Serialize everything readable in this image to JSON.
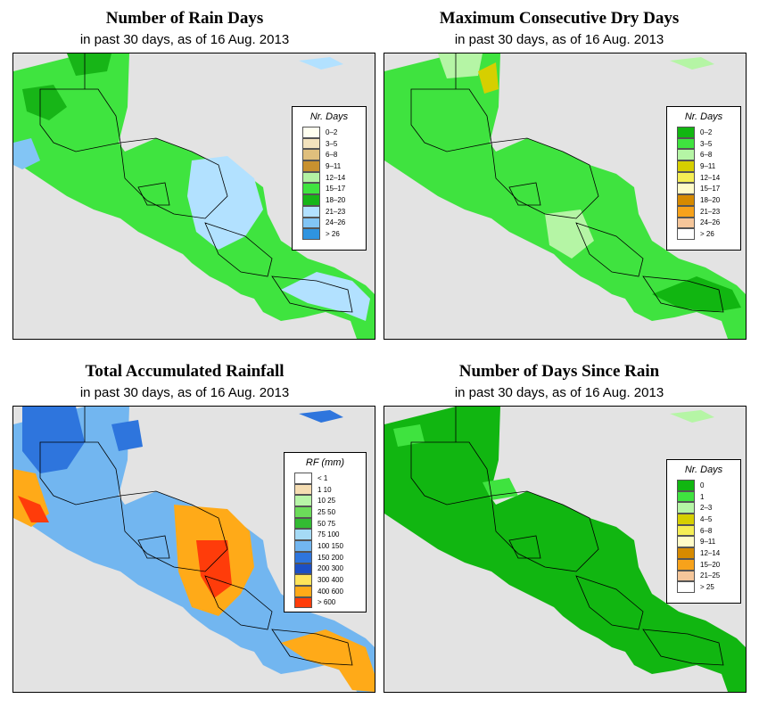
{
  "panels": [
    {
      "title": "Number of Rain Days",
      "subtitle": "in past 30 days, as of  16 Aug. 2013",
      "legend": {
        "title": "Nr. Days",
        "items": [
          {
            "label": "0–2",
            "color": "#fffff0"
          },
          {
            "label": "3–5",
            "color": "#f3e3bd"
          },
          {
            "label": "6–8",
            "color": "#dfbf7d"
          },
          {
            "label": "9–11",
            "color": "#c8912f"
          },
          {
            "label": "12–14",
            "color": "#b3f2a3"
          },
          {
            "label": "15–17",
            "color": "#3fe43f"
          },
          {
            "label": "18–20",
            "color": "#17b517"
          },
          {
            "label": "21–23",
            "color": "#b2e1ff"
          },
          {
            "label": "24–26",
            "color": "#82c5f5"
          },
          {
            "label": "> 26",
            "color": "#2f94e0"
          }
        ]
      }
    },
    {
      "title": "Maximum Consecutive Dry Days",
      "subtitle": "in past 30 days, as of  16 Aug. 2013",
      "legend": {
        "title": "Nr. Days",
        "items": [
          {
            "label": "0–2",
            "color": "#11b611"
          },
          {
            "label": "3–5",
            "color": "#3fe33f"
          },
          {
            "label": "6–8",
            "color": "#b5f5a5"
          },
          {
            "label": "9–11",
            "color": "#d6cf00"
          },
          {
            "label": "12–14",
            "color": "#f5ee55"
          },
          {
            "label": "15–17",
            "color": "#fffbc8"
          },
          {
            "label": "18–20",
            "color": "#d68a00"
          },
          {
            "label": "21–23",
            "color": "#f7a21b"
          },
          {
            "label": "24–26",
            "color": "#f5c69a"
          },
          {
            "label": "> 26",
            "color": "#ffffff"
          }
        ]
      }
    },
    {
      "title": "Total Accumulated Rainfall",
      "subtitle": "in past 30 days, as of  16 Aug. 2013",
      "legend": {
        "title": "RF (mm)",
        "items": [
          {
            "label": "< 1",
            "color": "#ffffff"
          },
          {
            "label": "1   10",
            "color": "#f5ddb2"
          },
          {
            "label": "10   25",
            "color": "#b8f5a8"
          },
          {
            "label": "25   50",
            "color": "#6cdc5a"
          },
          {
            "label": "50   75",
            "color": "#33bb33"
          },
          {
            "label": "75   100",
            "color": "#a5daf5"
          },
          {
            "label": "100   150",
            "color": "#72b6f0"
          },
          {
            "label": "150   200",
            "color": "#2e75dd"
          },
          {
            "label": "200   300",
            "color": "#1c4fc4"
          },
          {
            "label": "300   400",
            "color": "#ffe45a"
          },
          {
            "label": "400   600",
            "color": "#ffaa18"
          },
          {
            "label": "> 600",
            "color": "#ff3c0a"
          }
        ]
      }
    },
    {
      "title": "Number of Days Since Rain",
      "subtitle": "in past 30 days, as of  16 Aug. 2013",
      "legend": {
        "title": "Nr. Days",
        "items": [
          {
            "label": "0",
            "color": "#11b611"
          },
          {
            "label": "1",
            "color": "#3fe33f"
          },
          {
            "label": "2–3",
            "color": "#b5f5a5"
          },
          {
            "label": "4–5",
            "color": "#d6cf00"
          },
          {
            "label": "6–8",
            "color": "#f5ee55"
          },
          {
            "label": "9–11",
            "color": "#fffbc8"
          },
          {
            "label": "12–14",
            "color": "#d68a00"
          },
          {
            "label": "15–20",
            "color": "#f7a21b"
          },
          {
            "label": "21–25",
            "color": "#f5c69a"
          },
          {
            "label": "> 25",
            "color": "#ffffff"
          }
        ]
      }
    }
  ]
}
